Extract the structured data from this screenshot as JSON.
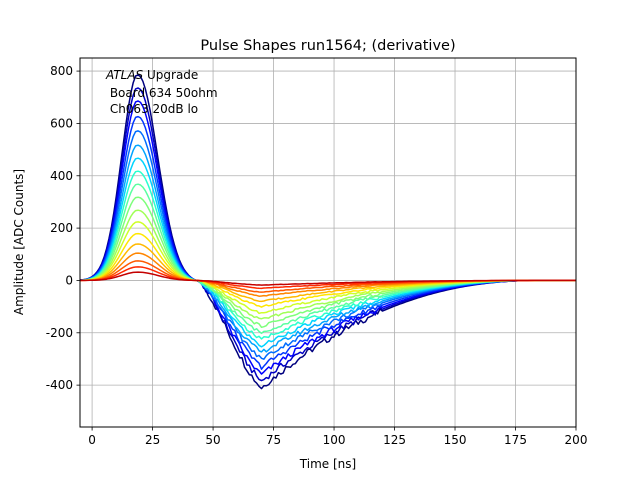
{
  "chart_data": {
    "type": "line",
    "title": "Pulse Shapes run1564; (derivative)",
    "xlabel": "Time [ns]",
    "ylabel": "Amplitude [ADC Counts]",
    "xlim": [
      -5,
      200
    ],
    "ylim": [
      -560,
      850
    ],
    "xticks": [
      0,
      25,
      50,
      75,
      100,
      125,
      150,
      175,
      200
    ],
    "yticks": [
      -400,
      -200,
      0,
      200,
      400,
      600,
      800
    ],
    "grid": true,
    "annotation": {
      "italic": "ATLAS",
      "rest": " Upgrade",
      "line2": " Board 634 50ohm",
      "line3": " Ch063 20dB lo"
    },
    "colormap": "jet",
    "pulse_model": {
      "peak_time_ns": 19,
      "zero_cross_ns": 43,
      "trough_time_ns": 70,
      "end_time_ns": 185
    },
    "series": [
      {
        "peak": 790,
        "trough": -410,
        "color": "#00007f"
      },
      {
        "peak": 740,
        "trough": -385,
        "color": "#0000c4"
      },
      {
        "peak": 690,
        "trough": -360,
        "color": "#0000ff"
      },
      {
        "peak": 630,
        "trough": -330,
        "color": "#0036ff"
      },
      {
        "peak": 575,
        "trough": -300,
        "color": "#006cff"
      },
      {
        "peak": 520,
        "trough": -275,
        "color": "#00a4ff"
      },
      {
        "peak": 470,
        "trough": -250,
        "color": "#00d4ff"
      },
      {
        "peak": 420,
        "trough": -225,
        "color": "#29ffce"
      },
      {
        "peak": 370,
        "trough": -200,
        "color": "#5affa0"
      },
      {
        "peak": 320,
        "trough": -175,
        "color": "#7dff7a"
      },
      {
        "peak": 270,
        "trough": -150,
        "color": "#a0ff57"
      },
      {
        "peak": 225,
        "trough": -125,
        "color": "#ceff29"
      },
      {
        "peak": 180,
        "trough": -100,
        "color": "#ffe600"
      },
      {
        "peak": 140,
        "trough": -80,
        "color": "#ffb900"
      },
      {
        "peak": 105,
        "trough": -60,
        "color": "#ff8600"
      },
      {
        "peak": 75,
        "trough": -45,
        "color": "#ff5900"
      },
      {
        "peak": 52,
        "trough": -30,
        "color": "#ff2800"
      },
      {
        "peak": 32,
        "trough": -18,
        "color": "#c40000"
      }
    ]
  }
}
